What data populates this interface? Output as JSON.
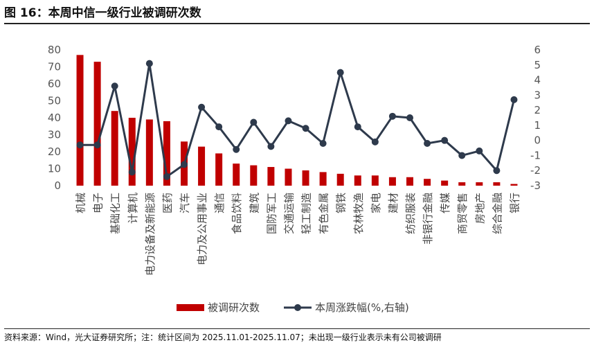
{
  "header": {
    "title": "图 16：本周中信一级行业被调研次数"
  },
  "footer": {
    "source": "资料来源：Wind，光大证券研究所；注：统计区间为 2025.11.01-2025.11.07；未出现一级行业表示未有公司被调研"
  },
  "colors": {
    "bar": "#c00000",
    "line": "#2e3a4c"
  },
  "chart_data": {
    "type": "bar",
    "categories": [
      "机械",
      "电子",
      "基础化工",
      "计算机",
      "电力设备及新能源",
      "医药",
      "汽车",
      "电力及公用事业",
      "通信",
      "食品饮料",
      "建筑",
      "国防军工",
      "交通运输",
      "轻工制造",
      "有色金属",
      "钢铁",
      "农林牧渔",
      "家电",
      "建材",
      "纺织服装",
      "非银行金融",
      "传媒",
      "商贸零售",
      "房地产",
      "综合金融",
      "银行"
    ],
    "series": [
      {
        "name": "被调研次数",
        "type": "bar",
        "axis": "left",
        "values": [
          77,
          73,
          44,
          40,
          39,
          38,
          26,
          23,
          19,
          13,
          12,
          11,
          10,
          9,
          8,
          7,
          6,
          6,
          5,
          5,
          4,
          3,
          2,
          2,
          2,
          1
        ]
      },
      {
        "name": "本周涨跌幅(%,右轴)",
        "type": "line",
        "axis": "right",
        "values": [
          -0.3,
          -0.3,
          3.6,
          -2.1,
          5.1,
          -2.4,
          -1.6,
          2.2,
          0.9,
          -0.6,
          1.2,
          -0.4,
          1.3,
          0.8,
          -0.2,
          4.5,
          0.9,
          -0.1,
          1.6,
          1.5,
          -0.2,
          0.0,
          -1.0,
          -0.7,
          -2.0,
          2.7
        ]
      }
    ],
    "y_left": {
      "range": [
        0,
        80
      ],
      "ticks": [
        "0",
        "10",
        "20",
        "30",
        "40",
        "50",
        "60",
        "70",
        "80"
      ]
    },
    "y_right": {
      "range": [
        -3,
        6
      ],
      "ticks": [
        "-3",
        "-2",
        "-1",
        "0",
        "1",
        "2",
        "3",
        "4",
        "5",
        "6"
      ]
    },
    "grid": false,
    "legend": "bottom-center"
  }
}
